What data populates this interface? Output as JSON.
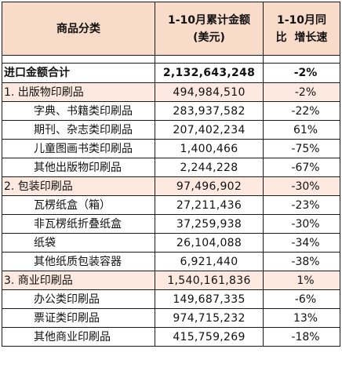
{
  "header": {
    "category": "商品分类",
    "amount_line1": "1-10月累计金额",
    "amount_line2": "(美元)",
    "growth_line1": "1-10月同",
    "growth_line2": "比  增长速"
  },
  "total": {
    "category": "进口金额合计",
    "amount": "2,132,643,248",
    "growth": "-2%"
  },
  "rows": [
    {
      "category": "1. 出版物印刷品",
      "amount": "494,984,510",
      "growth": "-2%"
    },
    {
      "category": "字典、书籍类印刷品",
      "amount": "283,937,582",
      "growth": "-22%"
    },
    {
      "category": "期刊、杂志类印刷品",
      "amount": "207,402,234",
      "growth": "61%"
    },
    {
      "category": "儿童图画书类印刷品",
      "amount": "1,400,466",
      "growth": "-75%"
    },
    {
      "category": "其他出版物印刷品",
      "amount": "2,244,228",
      "growth": "-67%"
    },
    {
      "category": "2. 包装印刷品",
      "amount": "97,496,902",
      "growth": "-30%"
    },
    {
      "category": "瓦楞纸盒（箱）",
      "amount": "27,211,436",
      "growth": "-23%"
    },
    {
      "category": "非瓦楞纸折叠纸盒",
      "amount": "37,259,938",
      "growth": "-30%"
    },
    {
      "category": "纸袋",
      "amount": "26,104,088",
      "growth": "-34%"
    },
    {
      "category": "其他纸质包装容器",
      "amount": "6,921,440",
      "growth": "-38%"
    },
    {
      "category": "3. 商业印刷品",
      "amount": "1,540,161,836",
      "growth": "1%"
    },
    {
      "category": "办公类印刷品",
      "amount": "149,687,335",
      "growth": "-6%"
    },
    {
      "category": "票证类印刷品",
      "amount": "974,715,232",
      "growth": "13%"
    },
    {
      "category": "其他商业印刷品",
      "amount": "415,759,269",
      "growth": "-18%"
    }
  ]
}
